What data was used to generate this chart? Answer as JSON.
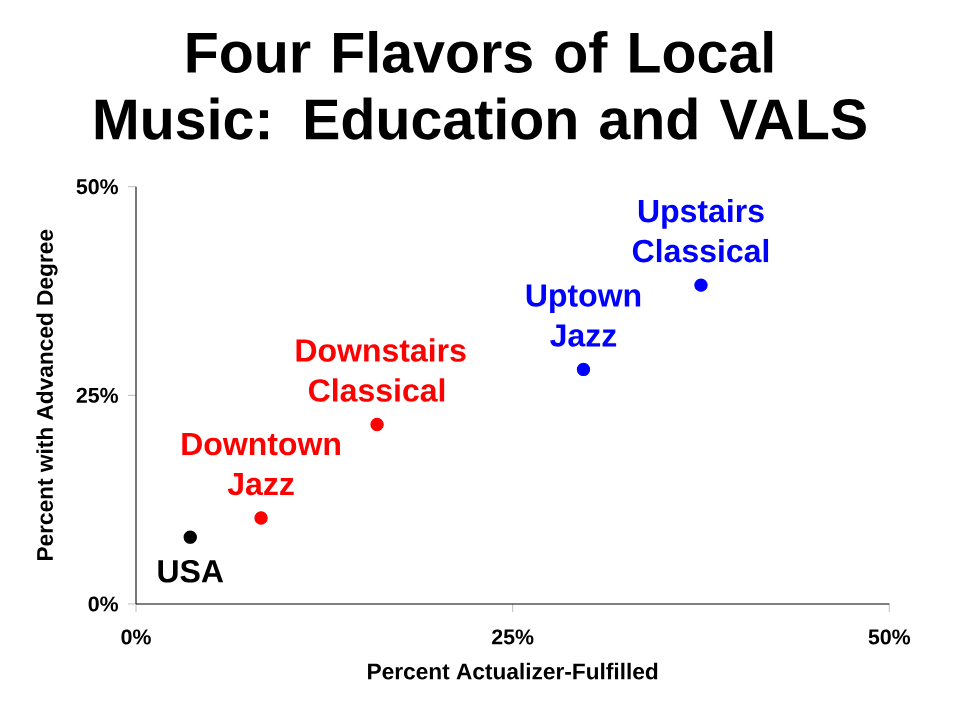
{
  "chart_data": {
    "type": "scatter",
    "title": "Four Flavors of Local Music: Education and VALS",
    "xlabel": "Percent Actualizer-Fulfilled",
    "ylabel": "Percent with Advanced Degree",
    "series": [
      {
        "name": "USA",
        "color": "#000000",
        "x": [
          3.6
        ],
        "values": [
          8.0
        ]
      },
      {
        "name": "Downtown Jazz",
        "color": "#ff0000",
        "x": [
          8.3
        ],
        "values": [
          10.3
        ]
      },
      {
        "name": "Downstairs Classical",
        "color": "#ff0000",
        "x": [
          16.0
        ],
        "values": [
          21.5
        ]
      },
      {
        "name": "Uptown Jazz",
        "color": "#0000ff",
        "x": [
          29.7
        ],
        "values": [
          28.1
        ]
      },
      {
        "name": "Upstairs Classical",
        "color": "#0000ff",
        "x": [
          37.5
        ],
        "values": [
          38.2
        ]
      }
    ],
    "xlim": [
      0,
      50
    ],
    "ylim": [
      0,
      50
    ],
    "xticks": [
      {
        "value": 0,
        "label": "0%"
      },
      {
        "value": 25,
        "label": "25%"
      },
      {
        "value": 50,
        "label": "50%"
      }
    ],
    "yticks": [
      {
        "value": 0,
        "label": "0%"
      },
      {
        "value": 25,
        "label": "25%"
      },
      {
        "value": 50,
        "label": "50%"
      }
    ],
    "grid": false
  }
}
